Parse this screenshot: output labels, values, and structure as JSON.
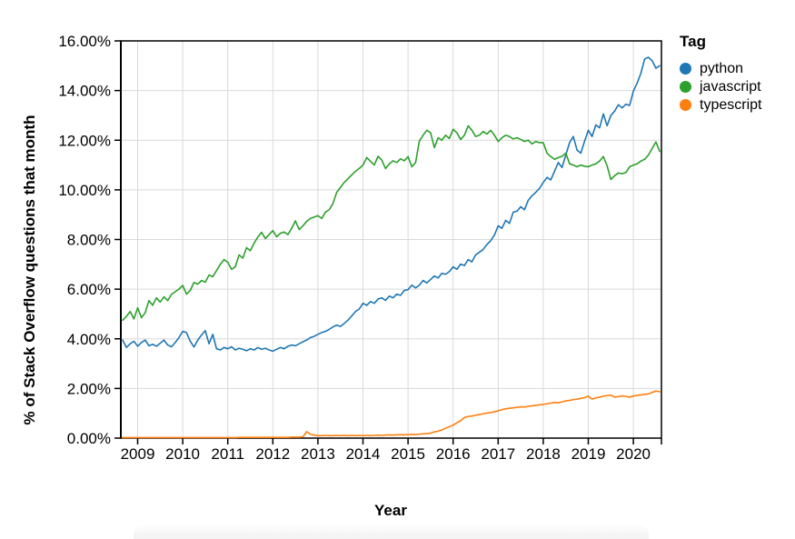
{
  "legend": {
    "title": "Tag",
    "items": [
      {
        "label": "python",
        "color": "#1f77b4"
      },
      {
        "label": "javascript",
        "color": "#2ca02c"
      },
      {
        "label": "typescript",
        "color": "#ff7f0e"
      }
    ]
  },
  "axes": {
    "x_title": "Year",
    "y_title": "% of Stack Overflow questions that month",
    "y_tick_labels": [
      "0.00%",
      "2.00%",
      "4.00%",
      "6.00%",
      "8.00%",
      "10.00%",
      "12.00%",
      "14.00%",
      "16.00%"
    ],
    "x_tick_labels": [
      "2009",
      "2010",
      "2011",
      "2012",
      "2013",
      "2014",
      "2015",
      "2016",
      "2017",
      "2018",
      "2019",
      "2020"
    ]
  },
  "chart_data": {
    "type": "line",
    "title": "",
    "xlabel": "Year",
    "ylabel": "% of Stack Overflow questions that month",
    "x_frequency": "monthly",
    "x_start_month": "2008-09",
    "x_end_month": "2020-08",
    "ylim": [
      0,
      16
    ],
    "y_unit": "percent",
    "grid": true,
    "legend_title": "Tag",
    "legend_position": "top-right",
    "series": [
      {
        "name": "python",
        "color": "#1f77b4",
        "values": [
          3.95,
          3.65,
          3.8,
          3.9,
          3.7,
          3.85,
          3.95,
          3.72,
          3.78,
          3.7,
          3.82,
          3.95,
          3.75,
          3.68,
          3.85,
          4.05,
          4.3,
          4.25,
          3.9,
          3.67,
          3.95,
          4.15,
          4.33,
          3.8,
          4.18,
          3.6,
          3.55,
          3.65,
          3.6,
          3.68,
          3.55,
          3.62,
          3.58,
          3.52,
          3.6,
          3.55,
          3.65,
          3.58,
          3.62,
          3.55,
          3.5,
          3.58,
          3.65,
          3.6,
          3.7,
          3.75,
          3.72,
          3.8,
          3.88,
          3.95,
          4.05,
          4.1,
          4.18,
          4.25,
          4.3,
          4.38,
          4.48,
          4.55,
          4.5,
          4.62,
          4.75,
          4.92,
          5.1,
          5.2,
          5.43,
          5.35,
          5.5,
          5.43,
          5.6,
          5.65,
          5.55,
          5.72,
          5.65,
          5.8,
          5.75,
          5.95,
          5.98,
          6.16,
          6.05,
          6.16,
          6.35,
          6.25,
          6.39,
          6.53,
          6.45,
          6.64,
          6.6,
          6.71,
          6.9,
          6.8,
          7.01,
          6.95,
          7.19,
          7.1,
          7.38,
          7.49,
          7.6,
          7.8,
          7.95,
          8.18,
          8.55,
          8.45,
          8.77,
          8.65,
          9.1,
          9.14,
          9.32,
          9.2,
          9.58,
          9.76,
          9.9,
          10.06,
          10.3,
          10.5,
          10.4,
          10.75,
          11.1,
          10.9,
          11.4,
          11.9,
          12.15,
          11.6,
          11.48,
          11.96,
          12.4,
          12.15,
          12.62,
          12.5,
          13.06,
          12.58,
          13.0,
          13.17,
          13.43,
          13.3,
          13.45,
          13.4,
          13.98,
          14.3,
          14.7,
          15.27,
          15.34,
          15.2,
          14.9,
          15.0
        ]
      },
      {
        "name": "javascript",
        "color": "#2ca02c",
        "values": [
          4.75,
          4.9,
          5.1,
          4.8,
          5.25,
          4.85,
          5.05,
          5.54,
          5.35,
          5.65,
          5.48,
          5.69,
          5.54,
          5.79,
          5.9,
          6.0,
          6.15,
          5.8,
          5.95,
          6.27,
          6.2,
          6.35,
          6.28,
          6.57,
          6.5,
          6.75,
          7.0,
          7.19,
          7.08,
          6.8,
          6.9,
          7.38,
          7.25,
          7.67,
          7.55,
          7.85,
          8.1,
          8.29,
          8.04,
          8.2,
          8.36,
          8.11,
          8.25,
          8.3,
          8.2,
          8.45,
          8.75,
          8.4,
          8.55,
          8.73,
          8.85,
          8.9,
          8.96,
          8.85,
          9.1,
          9.2,
          9.45,
          9.9,
          10.1,
          10.3,
          10.45,
          10.6,
          10.75,
          10.86,
          11.0,
          11.3,
          11.15,
          11.0,
          11.35,
          11.2,
          10.86,
          11.05,
          11.17,
          11.1,
          11.25,
          11.17,
          11.34,
          10.93,
          11.1,
          11.96,
          12.2,
          12.4,
          12.3,
          11.7,
          12.1,
          12.0,
          12.2,
          12.07,
          12.44,
          12.3,
          12.03,
          12.2,
          12.58,
          12.4,
          12.15,
          12.2,
          12.35,
          12.25,
          12.4,
          12.2,
          11.95,
          12.1,
          12.2,
          12.15,
          12.05,
          12.1,
          12.03,
          11.95,
          12.0,
          11.85,
          11.95,
          11.9,
          11.9,
          11.48,
          11.34,
          11.23,
          11.3,
          11.35,
          11.48,
          11.05,
          11.0,
          10.93,
          11.0,
          10.95,
          10.93,
          11.0,
          11.05,
          11.16,
          11.34,
          10.97,
          10.42,
          10.57,
          10.68,
          10.65,
          10.7,
          10.93,
          11.0,
          11.05,
          11.16,
          11.23,
          11.4,
          11.67,
          11.93,
          11.55
        ]
      },
      {
        "name": "typescript",
        "color": "#ff7f0e",
        "values": [
          0.02,
          0.02,
          0.02,
          0.02,
          0.02,
          0.02,
          0.02,
          0.02,
          0.02,
          0.02,
          0.02,
          0.02,
          0.02,
          0.02,
          0.02,
          0.02,
          0.02,
          0.02,
          0.02,
          0.02,
          0.02,
          0.02,
          0.02,
          0.02,
          0.02,
          0.02,
          0.02,
          0.02,
          0.02,
          0.02,
          0.02,
          0.03,
          0.03,
          0.03,
          0.03,
          0.03,
          0.03,
          0.03,
          0.03,
          0.03,
          0.03,
          0.03,
          0.03,
          0.03,
          0.03,
          0.04,
          0.04,
          0.04,
          0.05,
          0.26,
          0.15,
          0.12,
          0.1,
          0.1,
          0.11,
          0.1,
          0.1,
          0.11,
          0.1,
          0.11,
          0.1,
          0.11,
          0.1,
          0.11,
          0.1,
          0.11,
          0.1,
          0.11,
          0.12,
          0.11,
          0.12,
          0.13,
          0.12,
          0.13,
          0.14,
          0.13,
          0.14,
          0.15,
          0.14,
          0.16,
          0.17,
          0.18,
          0.2,
          0.25,
          0.28,
          0.33,
          0.4,
          0.46,
          0.52,
          0.62,
          0.7,
          0.83,
          0.87,
          0.89,
          0.92,
          0.95,
          0.98,
          1.01,
          1.03,
          1.06,
          1.1,
          1.15,
          1.18,
          1.2,
          1.22,
          1.24,
          1.26,
          1.25,
          1.28,
          1.3,
          1.32,
          1.34,
          1.36,
          1.38,
          1.41,
          1.44,
          1.42,
          1.46,
          1.5,
          1.52,
          1.55,
          1.57,
          1.6,
          1.63,
          1.69,
          1.57,
          1.62,
          1.65,
          1.69,
          1.71,
          1.73,
          1.65,
          1.67,
          1.7,
          1.68,
          1.65,
          1.7,
          1.72,
          1.74,
          1.76,
          1.78,
          1.84,
          1.9,
          1.87
        ]
      }
    ]
  }
}
